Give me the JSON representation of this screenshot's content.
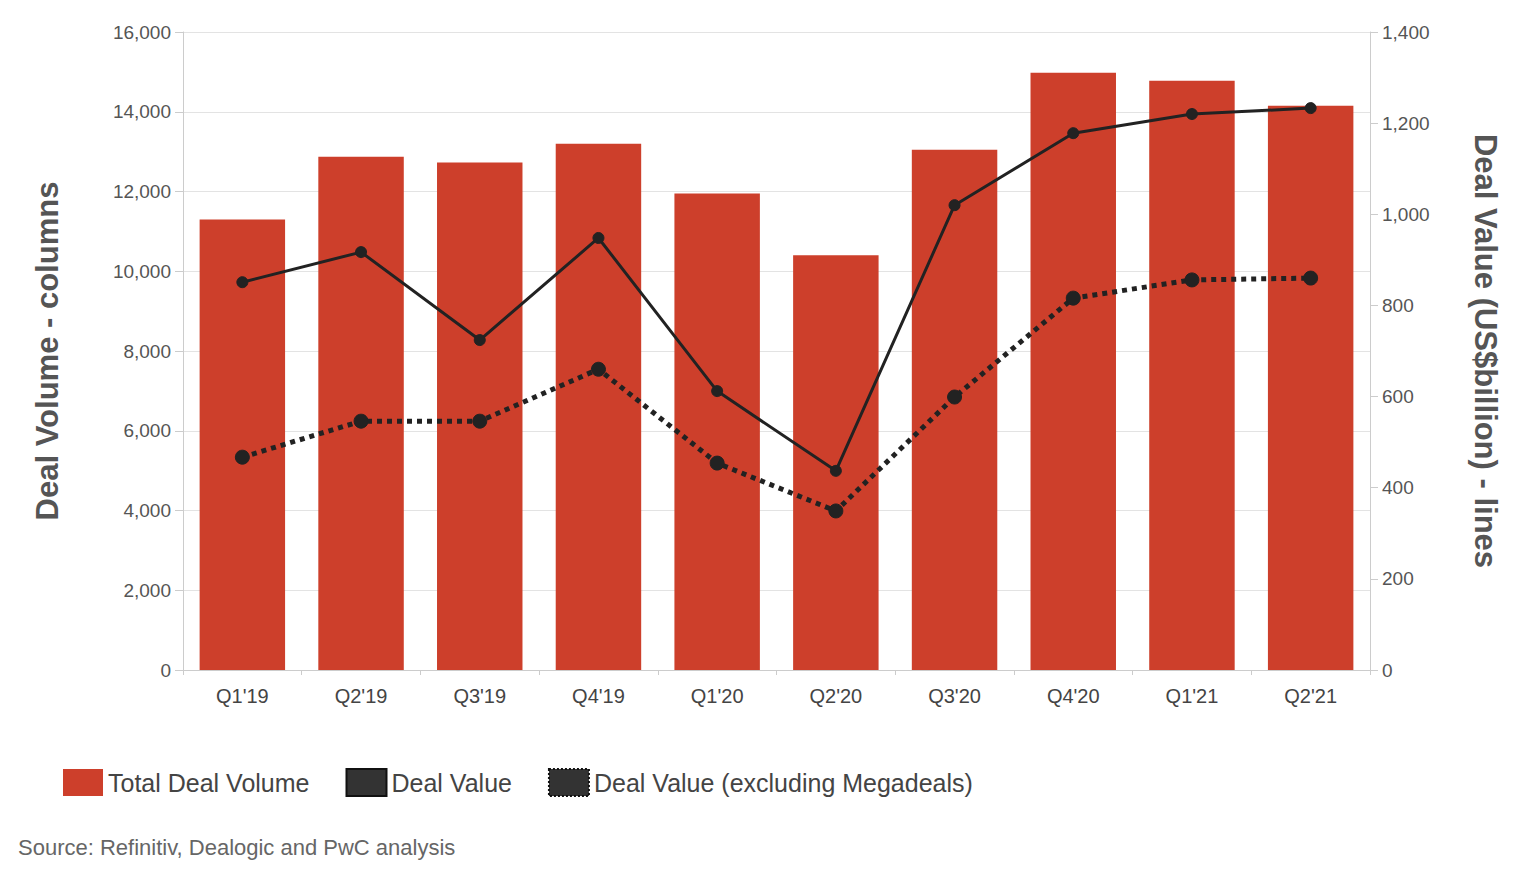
{
  "chart_data": {
    "type": "bar",
    "y_label": "Deal Volume - columns",
    "y2_label": "Deal Value (US$billion) - lines",
    "annotations": [
      "Source: Refinitiv, Dealogic and PwC analysis"
    ],
    "categories": [
      "Q1'19",
      "Q2'19",
      "Q3'19",
      "Q4'19",
      "Q1'20",
      "Q2'20",
      "Q3'20",
      "Q4'20",
      "Q1'21",
      "Q2'21"
    ],
    "series": [
      {
        "name": "Total Deal Volume",
        "type": "bar",
        "color": "#cd3f2b",
        "values": [
          11300,
          12870,
          12730,
          13200,
          11950,
          10400,
          13050,
          14980,
          14780,
          14150
        ]
      },
      {
        "name": "Deal Value",
        "type": "line",
        "axis": "y2",
        "color": "#222222",
        "marker": "circle",
        "line_style": "solid",
        "values": [
          851,
          917,
          724,
          948,
          612,
          437,
          1020,
          1178,
          1220,
          1233
        ]
      },
      {
        "name": "Deal Value (excluding Megadeals)",
        "type": "line",
        "axis": "y2",
        "color": "#222222",
        "marker": "circle",
        "line_style": "dotted",
        "values": [
          467,
          546,
          546,
          660,
          454,
          349,
          599,
          816,
          856,
          860
        ]
      }
    ],
    "ylim": [
      0,
      16000
    ],
    "yticks": [
      0,
      {
        "value": 2000,
        "label": "2,000"
      },
      {
        "value": 4000,
        "label": "4,000"
      },
      {
        "value": 6000,
        "label": "6,000"
      },
      {
        "value": 8000,
        "label": "8,000"
      },
      {
        "value": 10000,
        "label": "10,000"
      },
      {
        "value": 12000,
        "label": "12,000"
      },
      {
        "value": 14000,
        "label": "14,000"
      },
      {
        "value": 16000,
        "label": "16,000"
      }
    ],
    "y2lim": [
      0,
      1400
    ],
    "y2ticks": [
      0,
      200,
      400,
      600,
      800,
      {
        "value": 1000,
        "label": "1,000"
      },
      {
        "value": 1200,
        "label": "1,200"
      },
      {
        "value": 1400,
        "label": "1,400"
      }
    ],
    "grid": true,
    "legend": "bottom-left"
  }
}
